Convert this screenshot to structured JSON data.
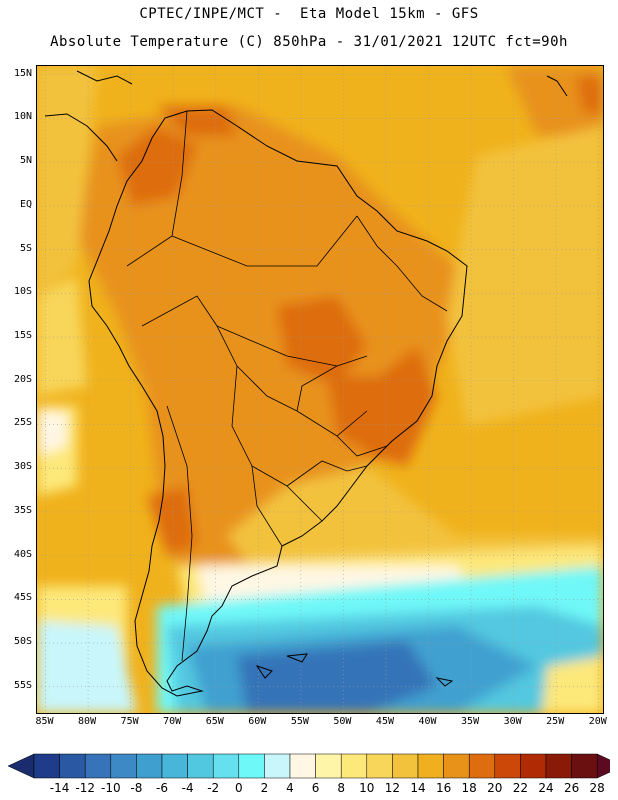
{
  "header": {
    "line1": "CPTEC/INPE/MCT -  Eta Model 15km - GFS",
    "line2": "Absolute Temperature (C) 850hPa - 31/01/2021 12UTC fct=90h"
  },
  "map": {
    "lat_range": [
      -58,
      16
    ],
    "lon_range": [
      -86,
      -19.5
    ],
    "lat_labels": [
      "15N",
      "10N",
      "5N",
      "EQ",
      "5S",
      "10S",
      "15S",
      "20S",
      "25S",
      "30S",
      "35S",
      "40S",
      "45S",
      "50S",
      "55S"
    ],
    "lat_values": [
      15,
      10,
      5,
      0,
      -5,
      -10,
      -15,
      -20,
      -25,
      -30,
      -35,
      -40,
      -45,
      -50,
      -55
    ],
    "lon_labels": [
      "85W",
      "80W",
      "75W",
      "70W",
      "65W",
      "60W",
      "55W",
      "50W",
      "45W",
      "40W",
      "35W",
      "30W",
      "25W",
      "20W"
    ],
    "lon_values": [
      -85,
      -80,
      -75,
      -70,
      -65,
      -60,
      -55,
      -50,
      -45,
      -40,
      -35,
      -30,
      -25,
      -20
    ],
    "background_color": "#f0b21c",
    "coast_color": "#000000",
    "grid_color": "#9a9a9a"
  },
  "legend": {
    "levels": [
      "-14",
      "-12",
      "-10",
      "-8",
      "-6",
      "-4",
      "-2",
      "0",
      "2",
      "4",
      "6",
      "8",
      "10",
      "12",
      "14",
      "16",
      "18",
      "20",
      "22",
      "24",
      "26",
      "28"
    ],
    "colors": [
      "#1e3c8a",
      "#2b58a3",
      "#3673b8",
      "#3c89c6",
      "#3fa0d0",
      "#47b6d8",
      "#52c8e0",
      "#66e0ee",
      "#6ff8f8",
      "#c8f6fb",
      "#fff7e4",
      "#fff5a8",
      "#fde87a",
      "#f8d65a",
      "#f3c23c",
      "#efaf1e",
      "#e8921a",
      "#de6d10",
      "#cc4808",
      "#b02a04",
      "#8a1a08",
      "#6b1010"
    ],
    "low_arrow_color": "#1a2c6e",
    "high_arrow_color": "#5b0a22"
  }
}
